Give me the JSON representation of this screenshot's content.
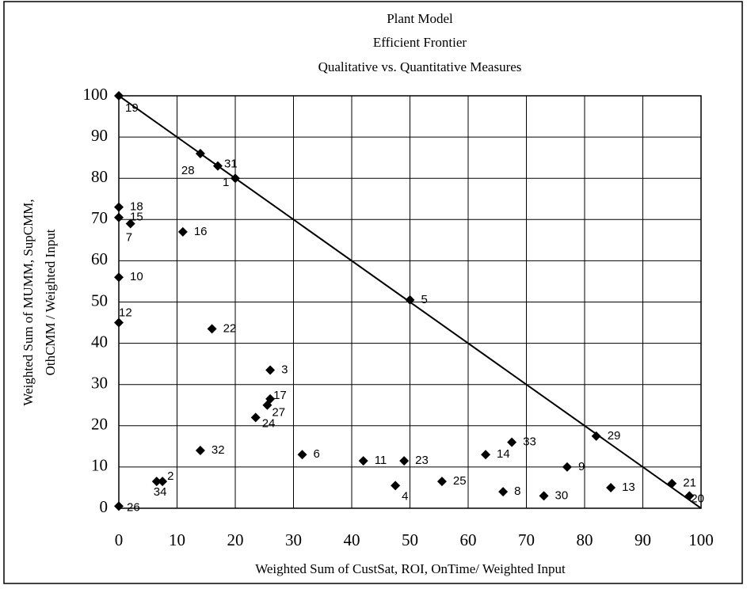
{
  "chart_data": {
    "type": "scatter",
    "title": [
      "Plant Model",
      "Efficient Frontier",
      "Qualitative vs. Quantitative Measures"
    ],
    "xlabel": "Weighted Sum of CustSat, ROI, OnTime/ Weighted Input",
    "ylabel": [
      "Weighted Sum of MUMM, SupCMM,",
      "OthCMM / Weighted Input"
    ],
    "labels": [
      "19",
      "28",
      "31",
      "1",
      "18",
      "15",
      "7",
      "16",
      "10",
      "5",
      "12",
      "22",
      "3",
      "17",
      "27",
      "24",
      "29",
      "33",
      "32",
      "14",
      "6",
      "11",
      "23",
      "9",
      "2",
      "34",
      "25",
      "4",
      "21",
      "13",
      "8",
      "30",
      "20",
      "26"
    ],
    "x": [
      0,
      14,
      17,
      20,
      0,
      0,
      2,
      11,
      0,
      50,
      0,
      16,
      26,
      26,
      25.5,
      23.5,
      82,
      67.5,
      14,
      63,
      31.5,
      42,
      49,
      77,
      7.5,
      6.5,
      55.5,
      47.5,
      95,
      84.5,
      66,
      73,
      98,
      0
    ],
    "y": [
      100,
      86,
      83,
      80,
      73,
      70.5,
      69,
      67,
      56,
      50.5,
      45,
      43.5,
      33.5,
      26.5,
      25,
      22,
      17.5,
      16,
      14,
      13,
      13,
      11.5,
      11.5,
      10,
      6.5,
      6.5,
      6.5,
      5.5,
      6,
      5,
      4,
      3,
      3,
      0.5
    ],
    "color": "#000000",
    "frontier": {
      "x": [
        0,
        100
      ],
      "y": [
        100,
        0
      ]
    },
    "xlim": [
      0,
      100
    ],
    "ylim": [
      0,
      100
    ],
    "xticks": [
      0,
      10,
      20,
      30,
      40,
      50,
      60,
      70,
      80,
      90,
      100
    ],
    "yticks": [
      0,
      10,
      20,
      30,
      40,
      50,
      60,
      70,
      80,
      90,
      100
    ],
    "grid": true
  }
}
